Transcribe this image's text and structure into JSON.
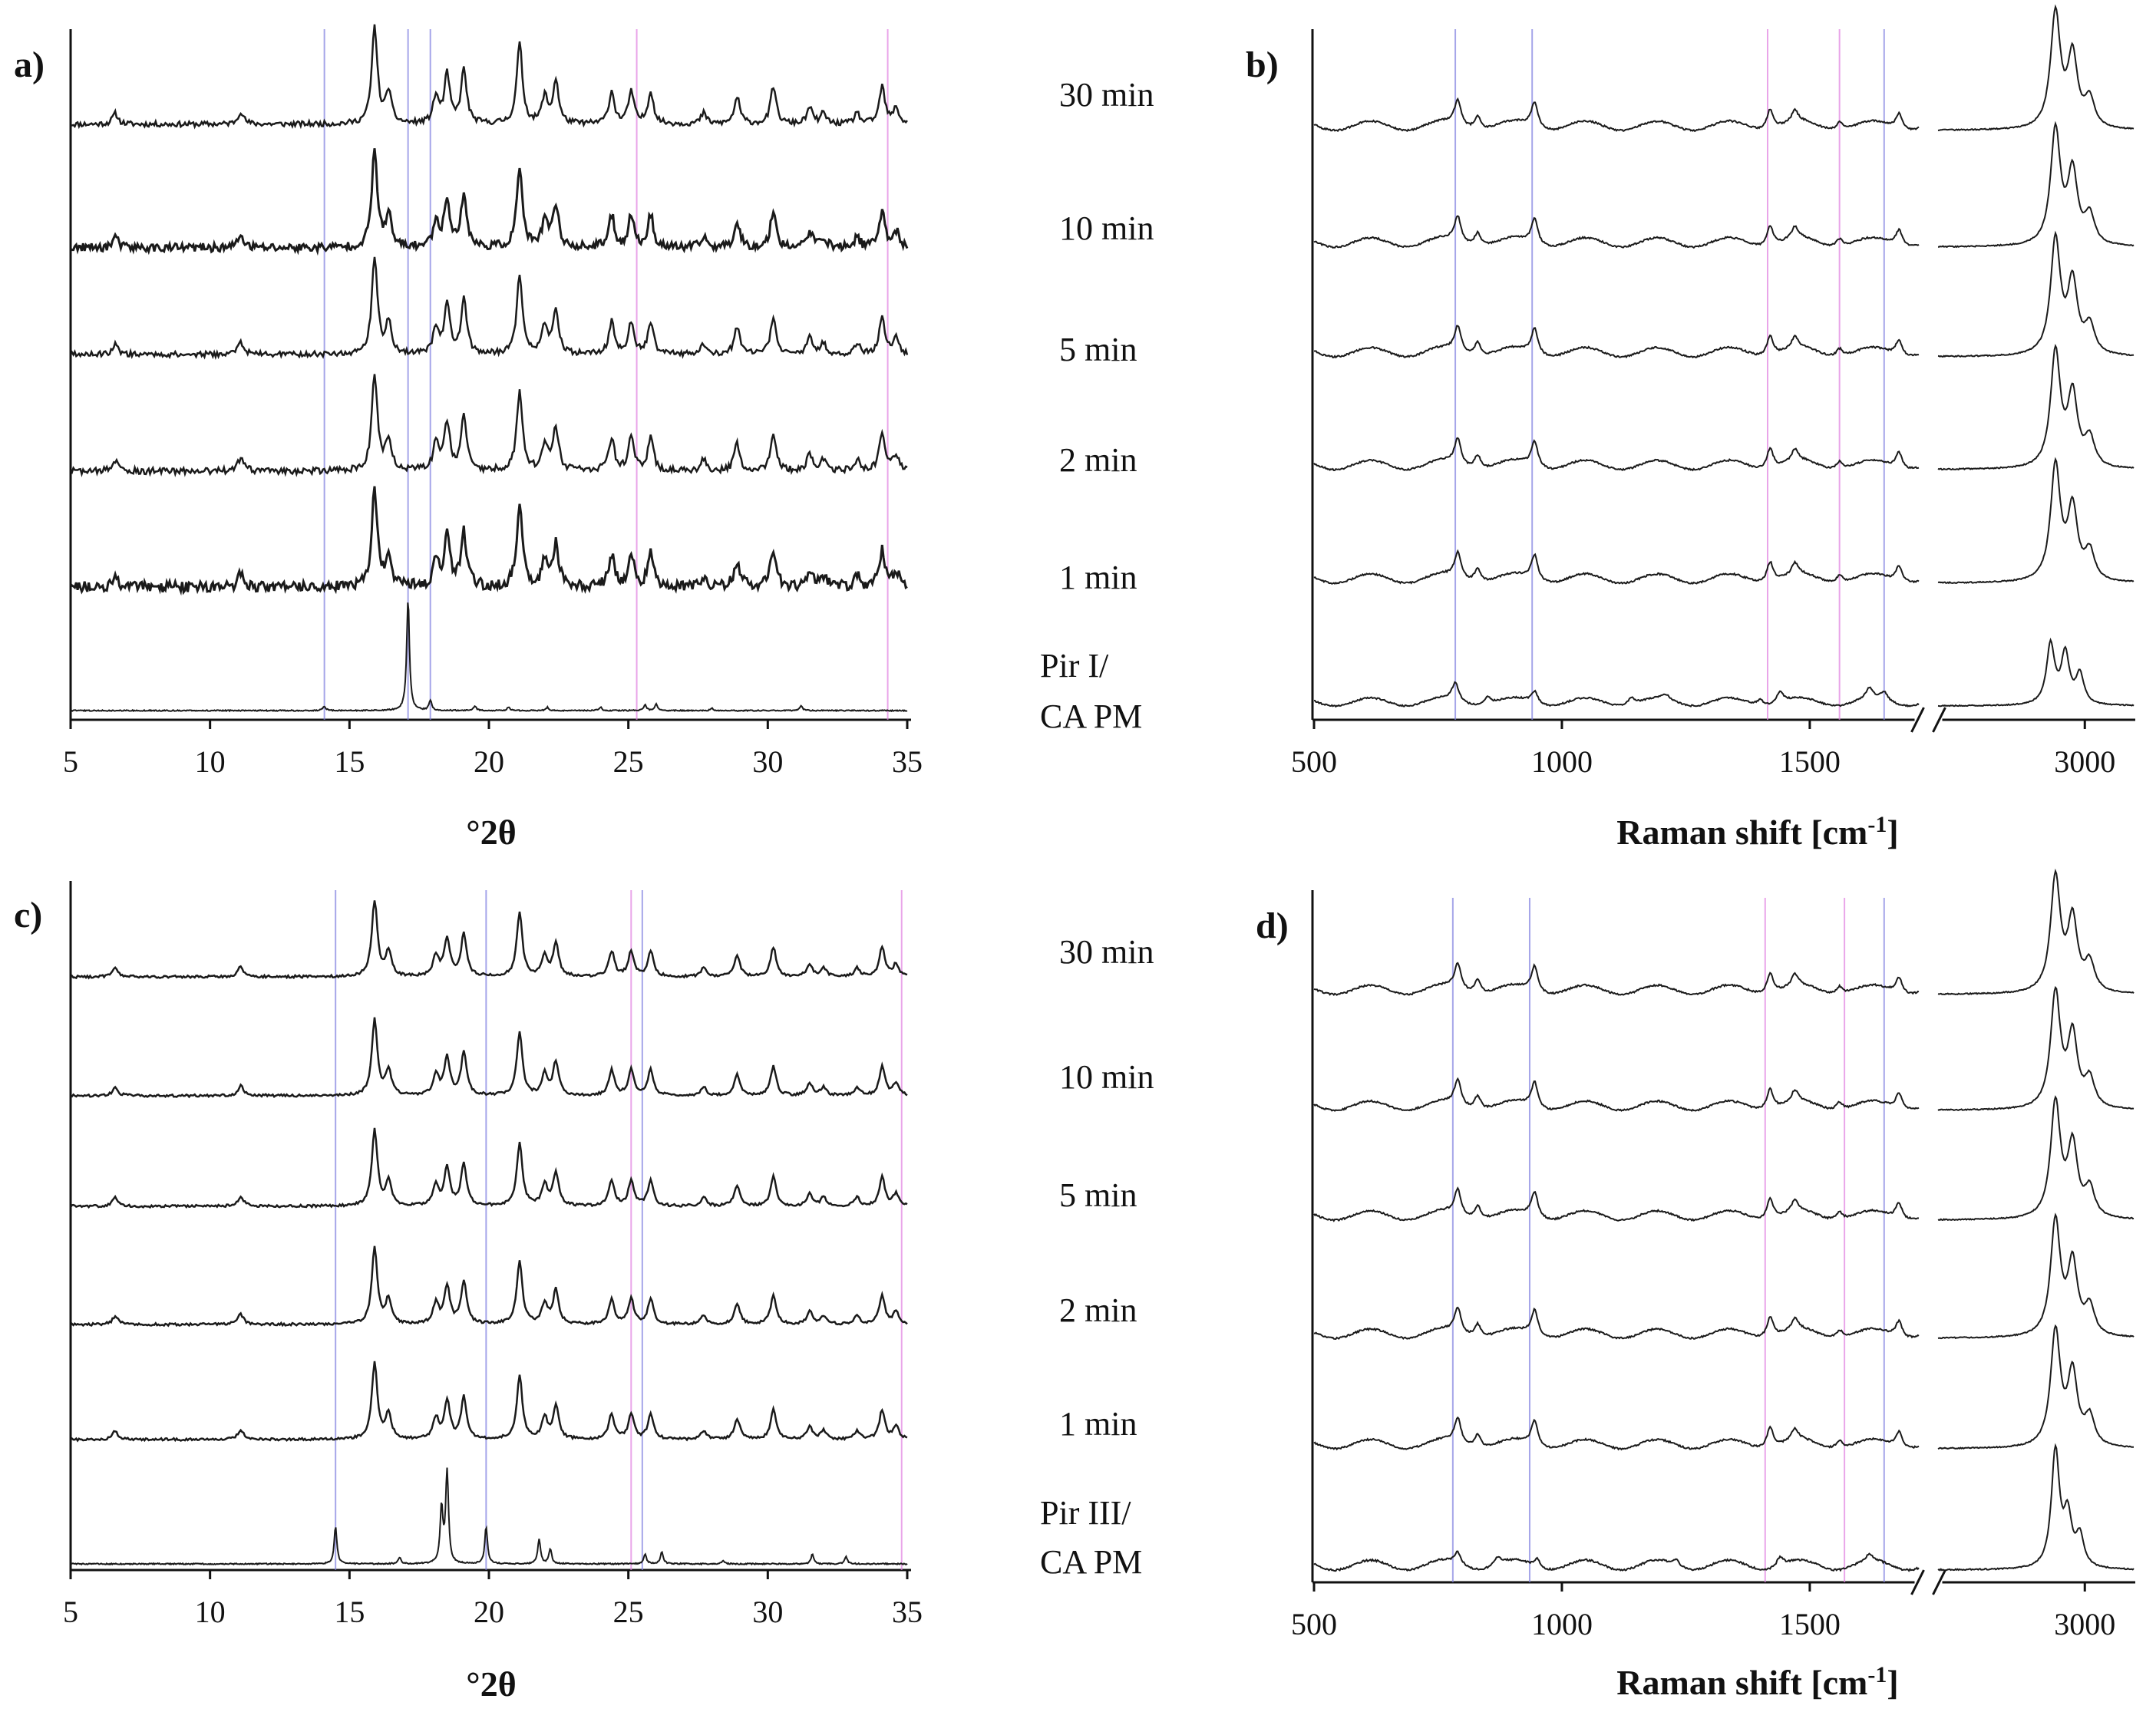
{
  "figure": {
    "colors": {
      "trace": "#1a1a1a",
      "ref_blue": "#8080e0",
      "ref_pink": "#e080e0",
      "axis": "#111111"
    }
  },
  "chart_data": [
    {
      "id": "a",
      "type": "line",
      "panel_label": "a)",
      "title": "",
      "xlabel": "°2θ",
      "ylabel": "",
      "xlim": [
        5,
        35
      ],
      "x_ticks": [
        "5",
        "10",
        "15",
        "20",
        "25",
        "30",
        "35"
      ],
      "series": [
        {
          "name": "30 min"
        },
        {
          "name": "10 min"
        },
        {
          "name": "5 min"
        },
        {
          "name": "2 min"
        },
        {
          "name": "1 min"
        },
        {
          "name": "Pir I/ CA PM",
          "name_lines": [
            "Pir I/",
            "CA PM"
          ]
        }
      ],
      "reference_lines": {
        "blue_2theta": [
          14.1,
          17.1,
          17.9
        ],
        "pink_2theta": [
          25.3,
          34.3
        ]
      },
      "peaks_product_2theta": [
        6.6,
        11.1,
        15.9,
        16.4,
        18.1,
        18.5,
        19.1,
        21.1,
        22.0,
        22.4,
        24.4,
        25.1,
        25.8,
        27.7,
        28.9,
        30.2,
        31.5,
        32.0,
        33.2,
        34.1,
        34.6
      ],
      "peaks_reference_2theta": [
        14.1,
        17.1,
        17.9,
        19.5,
        20.7,
        22.1,
        24.0,
        25.6,
        26.0,
        28.0,
        31.2
      ]
    },
    {
      "id": "b",
      "type": "line",
      "panel_label": "b)",
      "title": "",
      "xlabel": "Raman shift [cm⁻¹]",
      "xlabel_main": "Raman shift [cm",
      "xlabel_sup": "-1",
      "xlabel_end": "]",
      "ylabel": "",
      "x_segments": [
        [
          500,
          1720
        ],
        [
          2700,
          3100
        ]
      ],
      "x_ticks": [
        "500",
        "1000",
        "1500",
        "3000"
      ],
      "series": [
        {
          "name": "30 min"
        },
        {
          "name": "10 min"
        },
        {
          "name": "5 min"
        },
        {
          "name": "2 min"
        },
        {
          "name": "1 min"
        },
        {
          "name": "Pir I/ CA PM"
        }
      ],
      "reference_lines": {
        "blue_cm": [
          785,
          940,
          1650
        ],
        "pink_cm": [
          1415,
          1560
        ]
      },
      "peaks_product_cm": [
        790,
        830,
        945,
        1420,
        1470,
        1560,
        1680,
        2940,
        2975,
        3010
      ],
      "peaks_reference_cm": [
        785,
        850,
        945,
        1140,
        1210,
        1400,
        1440,
        1620,
        1650,
        2930,
        2960,
        2990
      ]
    },
    {
      "id": "c",
      "type": "line",
      "panel_label": "c)",
      "title": "",
      "xlabel": "°2θ",
      "ylabel": "",
      "xlim": [
        5,
        35
      ],
      "x_ticks": [
        "5",
        "10",
        "15",
        "20",
        "25",
        "30",
        "35"
      ],
      "series": [
        {
          "name": "30 min"
        },
        {
          "name": "10 min"
        },
        {
          "name": "5 min"
        },
        {
          "name": "2 min"
        },
        {
          "name": "1 min"
        },
        {
          "name": "Pir III/ CA PM",
          "name_lines": [
            "Pir III/",
            "CA PM"
          ]
        }
      ],
      "reference_lines": {
        "blue_2theta": [
          14.5,
          19.9,
          25.5
        ],
        "pink_2theta": [
          25.1,
          34.8
        ]
      },
      "peaks_product_2theta": [
        6.6,
        11.1,
        15.9,
        16.4,
        18.1,
        18.5,
        19.1,
        21.1,
        22.0,
        22.4,
        24.4,
        25.1,
        25.8,
        27.7,
        28.9,
        30.2,
        31.5,
        32.0,
        33.2,
        34.1,
        34.6
      ],
      "peaks_reference_2theta": [
        14.5,
        16.8,
        18.3,
        18.5,
        19.9,
        21.8,
        22.2,
        25.6,
        26.2,
        28.4,
        31.6,
        32.8
      ]
    },
    {
      "id": "d",
      "type": "line",
      "panel_label": "d)",
      "title": "",
      "xlabel": "Raman shift [cm⁻¹]",
      "xlabel_main": "Raman shift [cm",
      "xlabel_sup": "-1",
      "xlabel_end": "]",
      "ylabel": "",
      "x_segments": [
        [
          500,
          1720
        ],
        [
          2700,
          3100
        ]
      ],
      "x_ticks": [
        "500",
        "1000",
        "1500",
        "3000"
      ],
      "series": [
        {
          "name": "30 min"
        },
        {
          "name": "10 min"
        },
        {
          "name": "5 min"
        },
        {
          "name": "2 min"
        },
        {
          "name": "1 min"
        },
        {
          "name": "Pir III/ CA PM"
        }
      ],
      "reference_lines": {
        "blue_cm": [
          780,
          935,
          1650
        ],
        "pink_cm": [
          1410,
          1570
        ]
      },
      "peaks_product_cm": [
        790,
        830,
        945,
        1420,
        1470,
        1560,
        1680,
        2940,
        2975,
        3010
      ],
      "peaks_reference_cm": [
        790,
        870,
        950,
        1230,
        1440,
        1620,
        2940,
        2965,
        2990
      ]
    }
  ]
}
